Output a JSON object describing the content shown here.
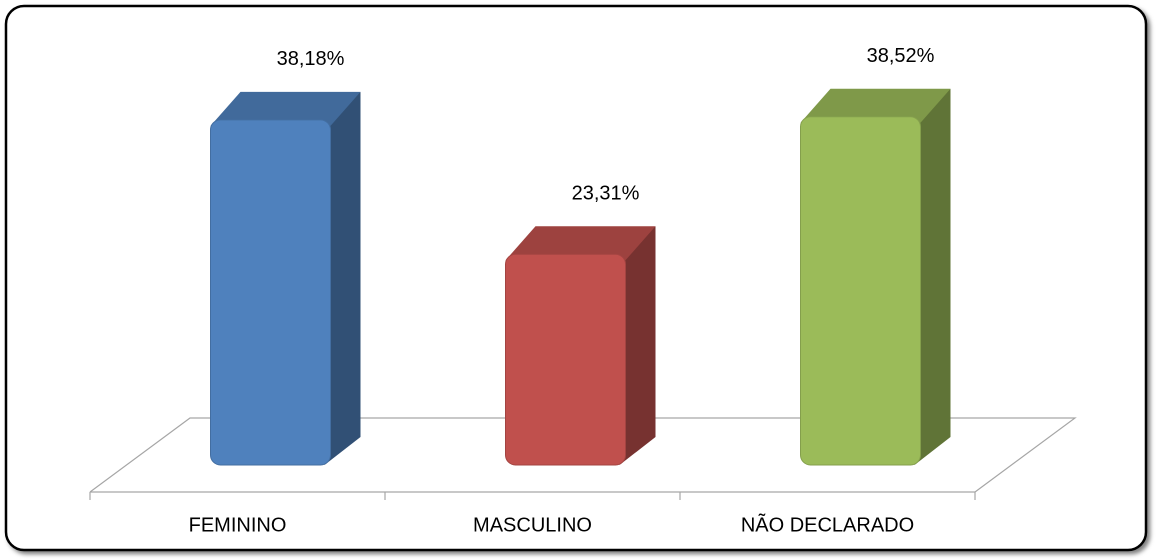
{
  "chart_data": {
    "type": "bar3d",
    "categories": [
      "FEMININO",
      "MASCULINO",
      "NÃO DECLARADO"
    ],
    "values": [
      38.18,
      23.31,
      38.52
    ],
    "value_labels": [
      "38,18%",
      "23,31%",
      "38,52%"
    ],
    "colors": [
      "#4f81bd",
      "#c0504d",
      "#9bbb59"
    ]
  }
}
